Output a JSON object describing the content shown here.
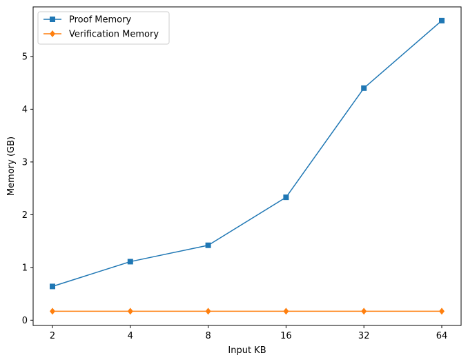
{
  "chart_data": {
    "type": "line",
    "categories": [
      "2",
      "4",
      "8",
      "16",
      "32",
      "64"
    ],
    "series": [
      {
        "name": "Proof Memory",
        "values": [
          0.64,
          1.11,
          1.42,
          2.33,
          4.4,
          5.68
        ],
        "color": "#1f77b4",
        "marker": "square"
      },
      {
        "name": "Verification Memory",
        "values": [
          0.17,
          0.17,
          0.17,
          0.17,
          0.17,
          0.17
        ],
        "color": "#ff7f0e",
        "marker": "thin-diamond"
      }
    ],
    "xlabel": "Input KB",
    "ylabel": "Memory (GB)",
    "yticks": [
      "0",
      "1",
      "2",
      "3",
      "4",
      "5"
    ],
    "ylim": [
      -0.1,
      5.94
    ],
    "grid": false,
    "legend_position": "upper-left"
  }
}
